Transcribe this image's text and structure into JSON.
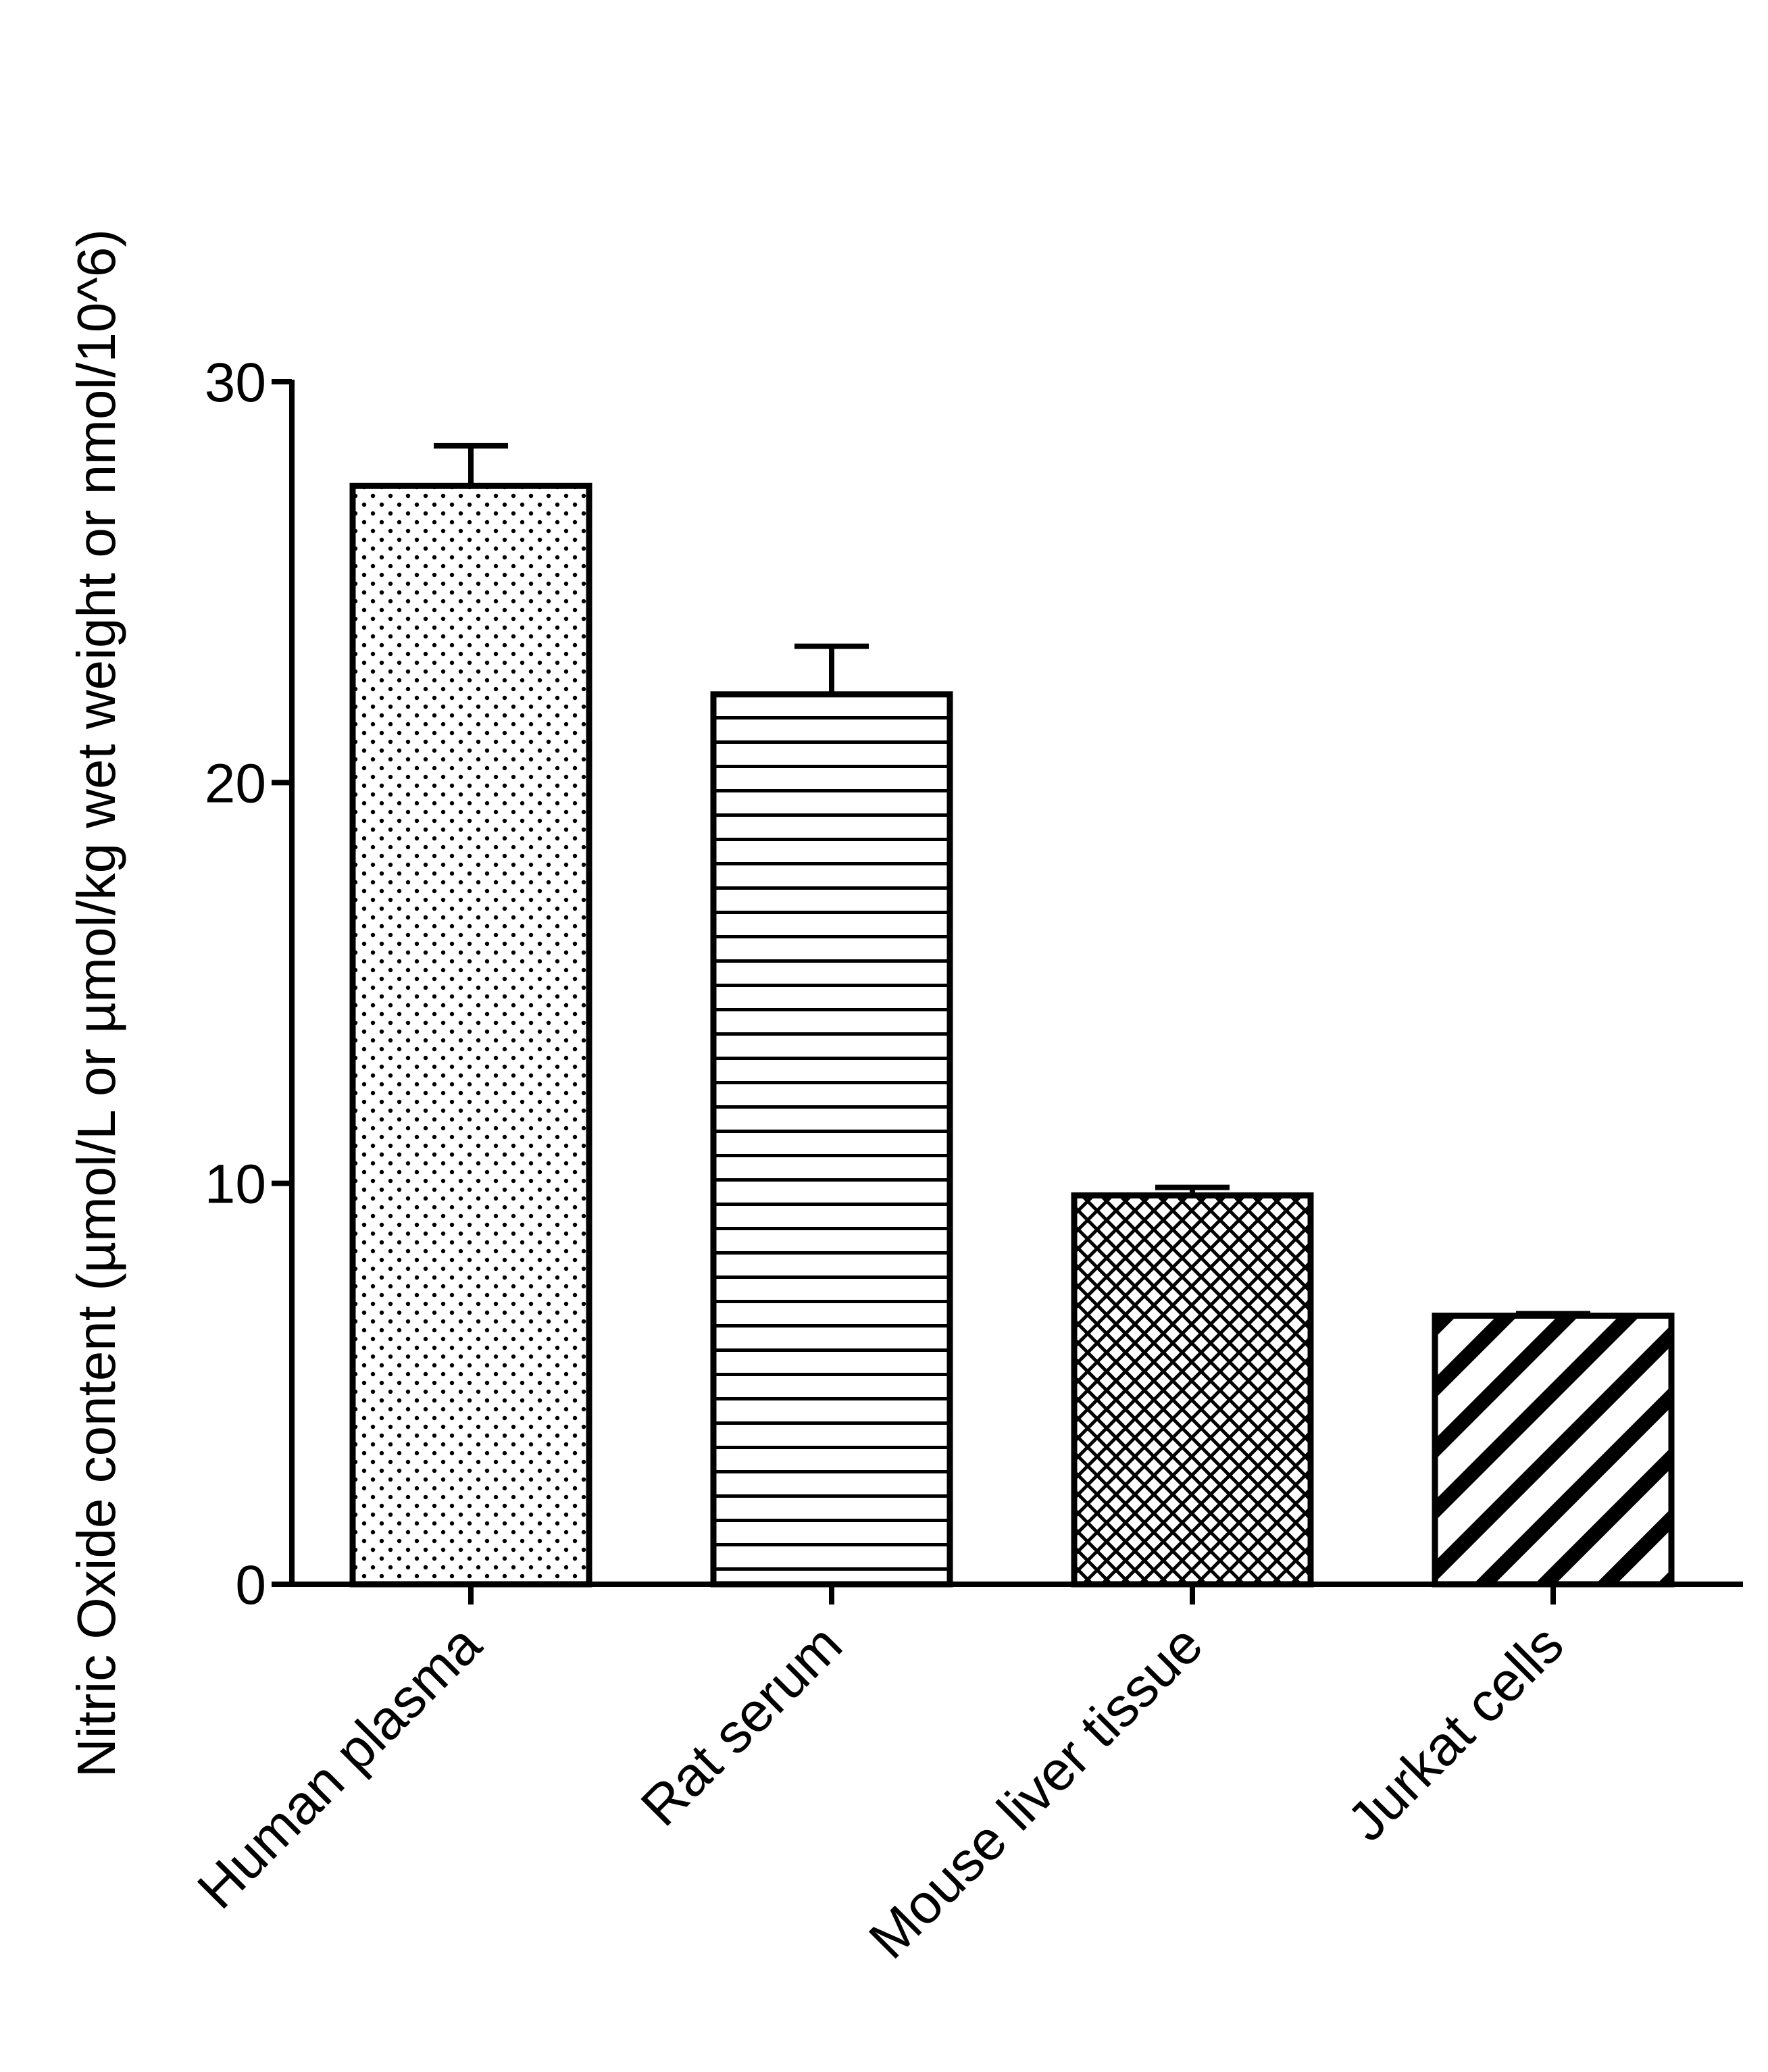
{
  "chart_data": {
    "type": "bar",
    "title": "",
    "xlabel": "",
    "ylabel": "Nitric Oxide content (µmol/L or µmol/kg wet weight or nmol/10^6)",
    "categories": [
      "Human plasma",
      "Rat serum",
      "Mouse liver tissue",
      "Jurkat cells"
    ],
    "values": [
      27.4,
      22.2,
      9.7,
      6.7
    ],
    "errors": [
      1.0,
      1.2,
      0.2,
      0.05
    ],
    "patterns": [
      "dots",
      "horizontal-lines",
      "crosshatch",
      "diagonal-stripes"
    ],
    "ylim": [
      0,
      30
    ],
    "yticks": [
      0,
      10,
      20,
      30
    ],
    "grid": false,
    "legend": "none",
    "colors": {
      "fill": "#ffffff",
      "stroke": "#000000"
    }
  }
}
